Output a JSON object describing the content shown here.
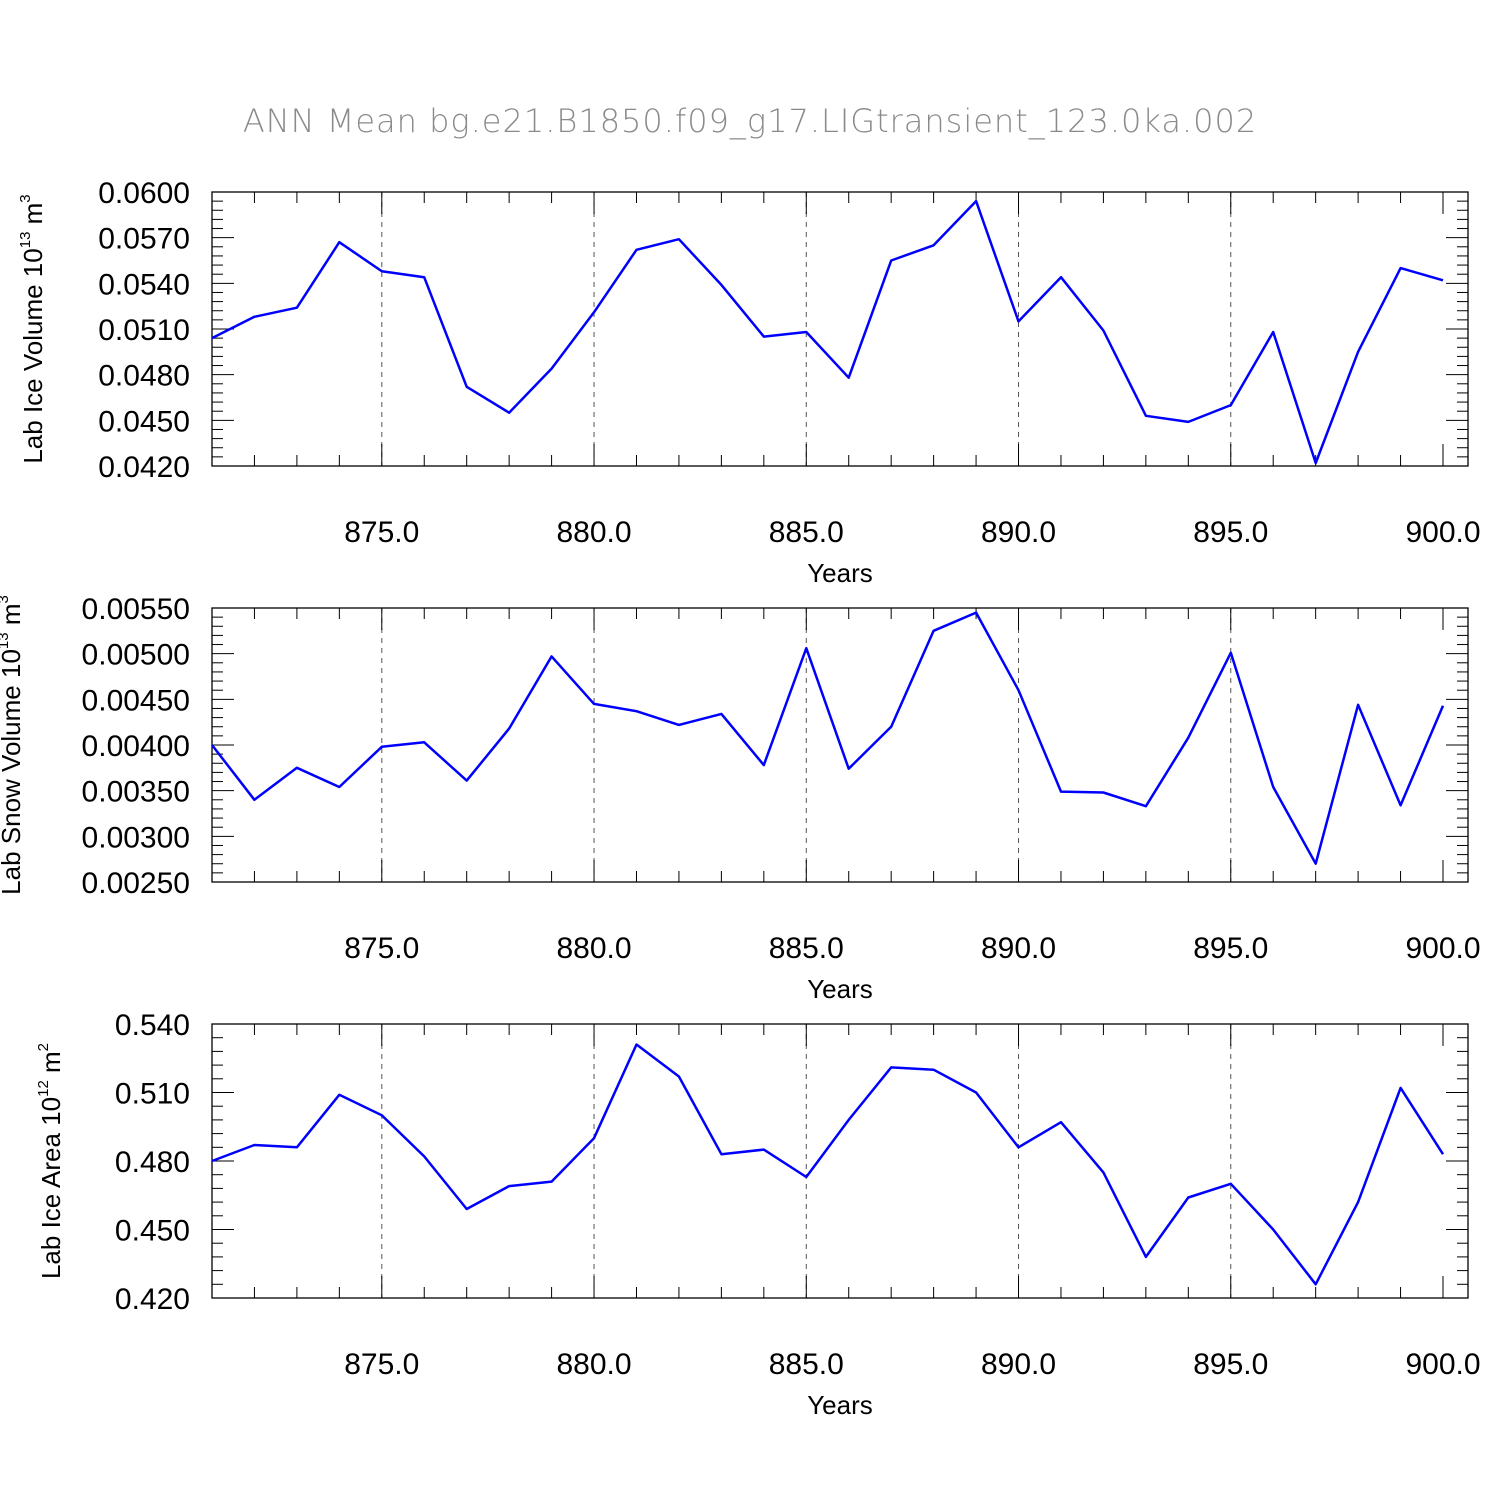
{
  "title": "ANN Mean bg.e21.B1850.f09_g17.LIGtransient_123.0ka.002",
  "chart_data": [
    {
      "type": "line",
      "xlabel": "Years",
      "ylabel": "Lab Ice Volume 10",
      "ylabel_exp": "13",
      "ylabel_unit": " m",
      "ylabel_unit_exp": "3",
      "xlim": [
        871,
        900
      ],
      "ylim": [
        0.042,
        0.06
      ],
      "x_major_ticks": [
        875,
        880,
        885,
        890,
        895,
        900
      ],
      "x_tick_labels": [
        "875.0",
        "880.0",
        "885.0",
        "890.0",
        "895.0",
        "900.0"
      ],
      "y_major_ticks": [
        0.042,
        0.045,
        0.048,
        0.051,
        0.054,
        0.057,
        0.06
      ],
      "y_tick_labels": [
        "0.0420",
        "0.0450",
        "0.0480",
        "0.0510",
        "0.0540",
        "0.0570",
        "0.0600"
      ],
      "y_minor_step": 0.0006,
      "grid": "vertical dashed at major x ticks",
      "x": [
        871,
        872,
        873,
        874,
        875,
        876,
        877,
        878,
        879,
        880,
        881,
        882,
        883,
        884,
        885,
        886,
        887,
        888,
        889,
        890,
        891,
        892,
        893,
        894,
        895,
        896,
        897,
        898,
        899,
        900
      ],
      "series": [
        {
          "color": "#0000ff",
          "values": [
            0.0504,
            0.0518,
            0.0524,
            0.0567,
            0.0548,
            0.0544,
            0.0472,
            0.0455,
            0.0484,
            0.0521,
            0.0562,
            0.0569,
            0.0539,
            0.0505,
            0.0508,
            0.0478,
            0.0555,
            0.0565,
            0.0594,
            0.0515,
            0.0544,
            0.0509,
            0.0453,
            0.0449,
            0.046,
            0.0508,
            0.0422,
            0.0495,
            0.055,
            0.0542
          ]
        }
      ]
    },
    {
      "type": "line",
      "xlabel": "Years",
      "ylabel": "Lab Snow Volume 10",
      "ylabel_exp": "13",
      "ylabel_unit": " m",
      "ylabel_unit_exp": "3",
      "xlim": [
        871,
        900
      ],
      "ylim": [
        0.0025,
        0.0055
      ],
      "x_major_ticks": [
        875,
        880,
        885,
        890,
        895,
        900
      ],
      "x_tick_labels": [
        "875.0",
        "880.0",
        "885.0",
        "890.0",
        "895.0",
        "900.0"
      ],
      "y_major_ticks": [
        0.0025,
        0.003,
        0.0035,
        0.004,
        0.0045,
        0.005,
        0.0055
      ],
      "y_tick_labels": [
        "0.00250",
        "0.00300",
        "0.00350",
        "0.00400",
        "0.00450",
        "0.00500",
        "0.00550"
      ],
      "y_minor_step": 0.0001,
      "grid": "vertical dashed at major x ticks",
      "x": [
        871,
        872,
        873,
        874,
        875,
        876,
        877,
        878,
        879,
        880,
        881,
        882,
        883,
        884,
        885,
        886,
        887,
        888,
        889,
        890,
        891,
        892,
        893,
        894,
        895,
        896,
        897,
        898,
        899,
        900
      ],
      "series": [
        {
          "color": "#0000ff",
          "values": [
            0.004,
            0.0034,
            0.00375,
            0.00354,
            0.00398,
            0.00403,
            0.00361,
            0.00418,
            0.00497,
            0.00445,
            0.00437,
            0.00422,
            0.00434,
            0.00378,
            0.00506,
            0.00374,
            0.0042,
            0.00525,
            0.00545,
            0.0046,
            0.00349,
            0.00348,
            0.00333,
            0.00408,
            0.00501,
            0.00354,
            0.0027,
            0.00444,
            0.00334,
            0.00443
          ]
        }
      ]
    },
    {
      "type": "line",
      "xlabel": "Years",
      "ylabel": "Lab Ice Area 10",
      "ylabel_exp": "12",
      "ylabel_unit": " m",
      "ylabel_unit_exp": "2",
      "xlim": [
        871,
        900
      ],
      "ylim": [
        0.42,
        0.54
      ],
      "x_major_ticks": [
        875,
        880,
        885,
        890,
        895,
        900
      ],
      "x_tick_labels": [
        "875.0",
        "880.0",
        "885.0",
        "890.0",
        "895.0",
        "900.0"
      ],
      "y_major_ticks": [
        0.42,
        0.45,
        0.48,
        0.51,
        0.54
      ],
      "y_tick_labels": [
        "0.420",
        "0.450",
        "0.480",
        "0.510",
        "0.540"
      ],
      "y_minor_step": 0.006,
      "grid": "vertical dashed at major x ticks",
      "x": [
        871,
        872,
        873,
        874,
        875,
        876,
        877,
        878,
        879,
        880,
        881,
        882,
        883,
        884,
        885,
        886,
        887,
        888,
        889,
        890,
        891,
        892,
        893,
        894,
        895,
        896,
        897,
        898,
        899,
        900
      ],
      "series": [
        {
          "color": "#0000ff",
          "values": [
            0.48,
            0.487,
            0.486,
            0.509,
            0.5,
            0.482,
            0.459,
            0.469,
            0.471,
            0.49,
            0.531,
            0.517,
            0.483,
            0.485,
            0.473,
            0.498,
            0.521,
            0.52,
            0.51,
            0.486,
            0.497,
            0.475,
            0.438,
            0.464,
            0.47,
            0.45,
            0.426,
            0.462,
            0.512,
            0.483
          ]
        }
      ]
    }
  ]
}
